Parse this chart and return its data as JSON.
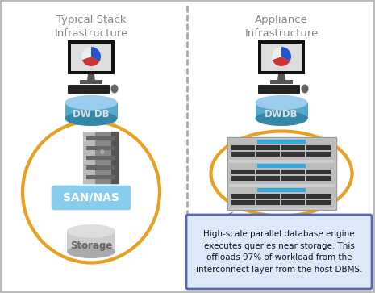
{
  "fig_width": 4.65,
  "fig_height": 3.63,
  "bg_color": "#ffffff",
  "border_color": "#bbbbbb",
  "divider_color": "#aaaaaa",
  "left_title": "Typical Stack\nInfrastructure",
  "right_title": "Appliance\nInfrastructure",
  "title_color": "#888888",
  "title_fontsize": 9.5,
  "dwdb_label_left": "DW DB",
  "dwdb_label_right": "DWDB",
  "db_label_fontsize": 8.5,
  "san_label": "SAN/NAS",
  "san_fontsize": 10,
  "storage_label": "Storage",
  "storage_fontsize": 8.5,
  "callout_text": "High-scale parallel database engine\nexecutes queries near storage. This\noffloads 97% of workload from the\ninterconnect layer from the host DBMS.",
  "callout_fontsize": 7.5,
  "callout_bg": "#dde8f8",
  "callout_border": "#5566bb",
  "oval_color": "#e8a020",
  "cyan_light": "#88ccee",
  "cyan_mid": "#55aacc",
  "cyan_dark": "#3388aa",
  "appliance_gray": "#cccccc",
  "appliance_mid": "#aaaaaa",
  "appliance_dark": "#333333",
  "appliance_blue": "#33aadd",
  "monitor_dark": "#111111",
  "monitor_screen": "#dddddd",
  "stand_color": "#555555",
  "keyboard_color": "#222222",
  "server_light": "#bbbbbb",
  "server_mid": "#888888",
  "server_dark": "#555555",
  "storage_cyl_top": "#dddddd",
  "storage_cyl_mid": "#cccccc",
  "storage_cyl_bot": "#aaaaaa"
}
